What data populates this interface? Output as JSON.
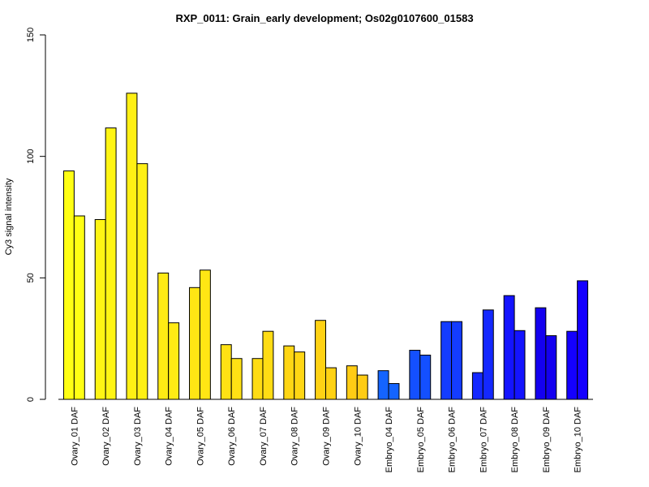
{
  "chart_data": {
    "type": "bar",
    "title": "RXP_0011: Grain_early development; Os02g0107600_01583",
    "xlabel": "",
    "ylabel": "Cy3 signal intensity",
    "ylim": [
      0,
      150
    ],
    "yticks": [
      0,
      50,
      100,
      150
    ],
    "grid": false,
    "legend": "none",
    "categories": [
      "Ovary_01 DAF",
      "Ovary_02 DAF",
      "Ovary_03 DAF",
      "Ovary_04 DAF",
      "Ovary_05 DAF",
      "Ovary_06 DAF",
      "Ovary_07 DAF",
      "Ovary_08 DAF",
      "Ovary_09 DAF",
      "Ovary_10 DAF",
      "Embryo_04 DAF",
      "Embryo_05 DAF",
      "Embryo_06 DAF",
      "Embryo_07 DAF",
      "Embryo_08 DAF",
      "Embryo_09 DAF",
      "Embryo_10 DAF"
    ],
    "series": [
      {
        "values": [
          94,
          74,
          126,
          52,
          46,
          22.5,
          16.8,
          22,
          32.5,
          13.8,
          11.8,
          20.2,
          32,
          11,
          42.7,
          37.7,
          28
        ]
      },
      {
        "values": [
          75.5,
          111.7,
          97,
          31.5,
          53.2,
          16.8,
          28,
          19.5,
          13,
          10,
          6.5,
          18.2,
          32,
          36.8,
          28.3,
          26.2,
          48.8
        ]
      }
    ],
    "category_colors": [
      "#ffff14",
      "#fff514",
      "#fff014",
      "#ffeb14",
      "#ffe614",
      "#ffe114",
      "#ffdc14",
      "#ffd614",
      "#ffd214",
      "#ffcc14",
      "#1464ff",
      "#1450ff",
      "#143cff",
      "#1428ff",
      "#1414ff",
      "#1400f0",
      "#1400ff"
    ]
  }
}
